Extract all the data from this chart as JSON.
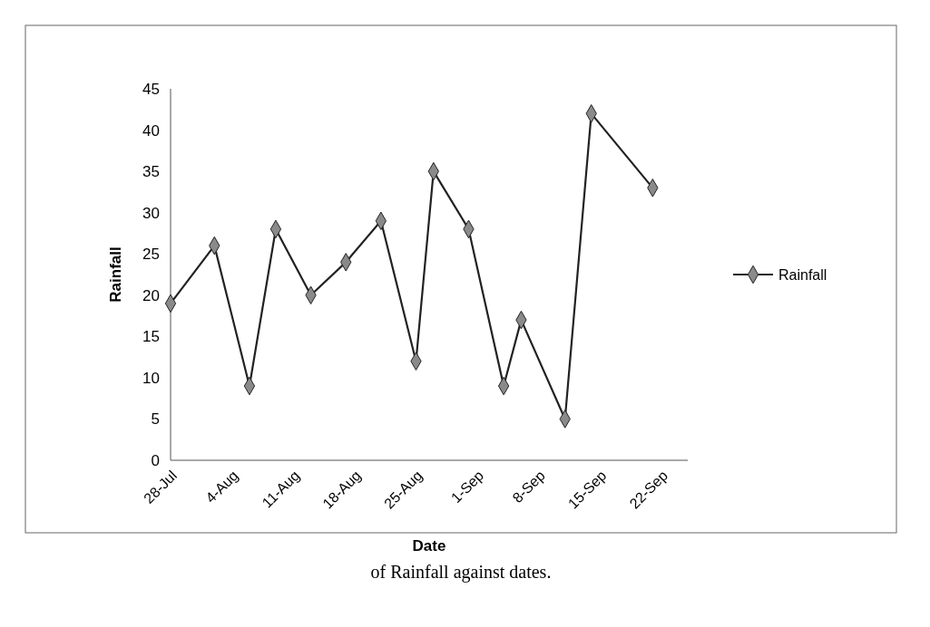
{
  "chart_data": {
    "type": "line",
    "xlabel": "Date",
    "ylabel": "Rainfall",
    "x": [
      "--07-28",
      "--08-02",
      "--08-06",
      "--08-09",
      "--08-13",
      "--08-17",
      "--08-21",
      "--08-25",
      "--08-27",
      "--08-31",
      "--09-04",
      "--09-06",
      "--09-11",
      "--09-14",
      "--09-21"
    ],
    "series": [
      {
        "name": "Rainfall",
        "color": "#222222",
        "values": [
          19,
          26,
          9,
          28,
          20,
          24,
          29,
          12,
          35,
          28,
          9,
          17,
          5,
          42,
          33
        ]
      }
    ],
    "xlim": [
      "--07-28",
      "--09-25"
    ],
    "xticks": [
      {
        "value": "--07-28",
        "label": "28-Jul"
      },
      {
        "value": "--08-04",
        "label": "4-Aug"
      },
      {
        "value": "--08-11",
        "label": "11-Aug"
      },
      {
        "value": "--08-18",
        "label": "18-Aug"
      },
      {
        "value": "--08-25",
        "label": "25-Aug"
      },
      {
        "value": "--09-01",
        "label": "1-Sep"
      },
      {
        "value": "--09-08",
        "label": "8-Sep"
      },
      {
        "value": "--09-15",
        "label": "15-Sep"
      },
      {
        "value": "--09-22",
        "label": "22-Sep"
      }
    ],
    "ylim": [
      0,
      45
    ],
    "yticks": [
      0,
      5,
      10,
      15,
      20,
      25,
      30,
      35,
      40,
      45
    ],
    "grid": false,
    "legend": "right",
    "marker": "diamond",
    "line_style": "solid",
    "annotations": [
      "of Rainfall  against dates."
    ]
  }
}
